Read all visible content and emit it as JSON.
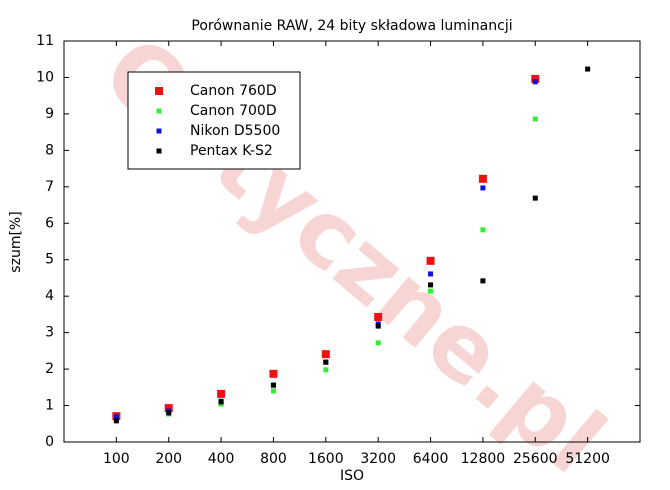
{
  "chart_data": {
    "type": "scatter",
    "title": "Porównanie RAW, 24 bity składowa luminancji",
    "watermark": "Optyczne.pl",
    "x_label": "ISO",
    "y_label": "szum[%]",
    "x_scale": "log",
    "xlim": [
      50,
      102400
    ],
    "xticks": [
      100,
      200,
      400,
      800,
      1600,
      3200,
      6400,
      12800,
      25600,
      51200
    ],
    "ylim": [
      0,
      11
    ],
    "yticks": [
      0,
      1,
      2,
      3,
      4,
      5,
      6,
      7,
      8,
      9,
      10,
      11
    ],
    "grid": false,
    "legend_position": "upper left",
    "x": [
      100,
      200,
      400,
      800,
      1600,
      3200,
      6400,
      12800,
      25600,
      51200
    ],
    "series": [
      {
        "name": "Canon 760D",
        "color": "#ee1111",
        "marker_size": 8,
        "values": [
          0.71,
          0.93,
          1.32,
          1.87,
          2.41,
          3.43,
          4.97,
          7.22,
          9.96,
          null
        ]
      },
      {
        "name": "Canon 700D",
        "color": "#33ee33",
        "marker_size": 5,
        "values": [
          0.66,
          0.77,
          1.04,
          1.4,
          1.98,
          2.72,
          4.14,
          5.82,
          8.86,
          null
        ]
      },
      {
        "name": "Nikon D5500",
        "color": "#1111dd",
        "marker_size": 5,
        "values": [
          0.69,
          0.85,
          1.12,
          1.56,
          2.19,
          3.24,
          4.61,
          6.97,
          9.88,
          null
        ]
      },
      {
        "name": "Pentax K-S2",
        "color": "#000000",
        "marker_size": 5,
        "values": [
          0.58,
          0.8,
          1.1,
          1.56,
          2.19,
          3.18,
          4.31,
          4.42,
          6.69,
          10.23
        ]
      }
    ]
  }
}
